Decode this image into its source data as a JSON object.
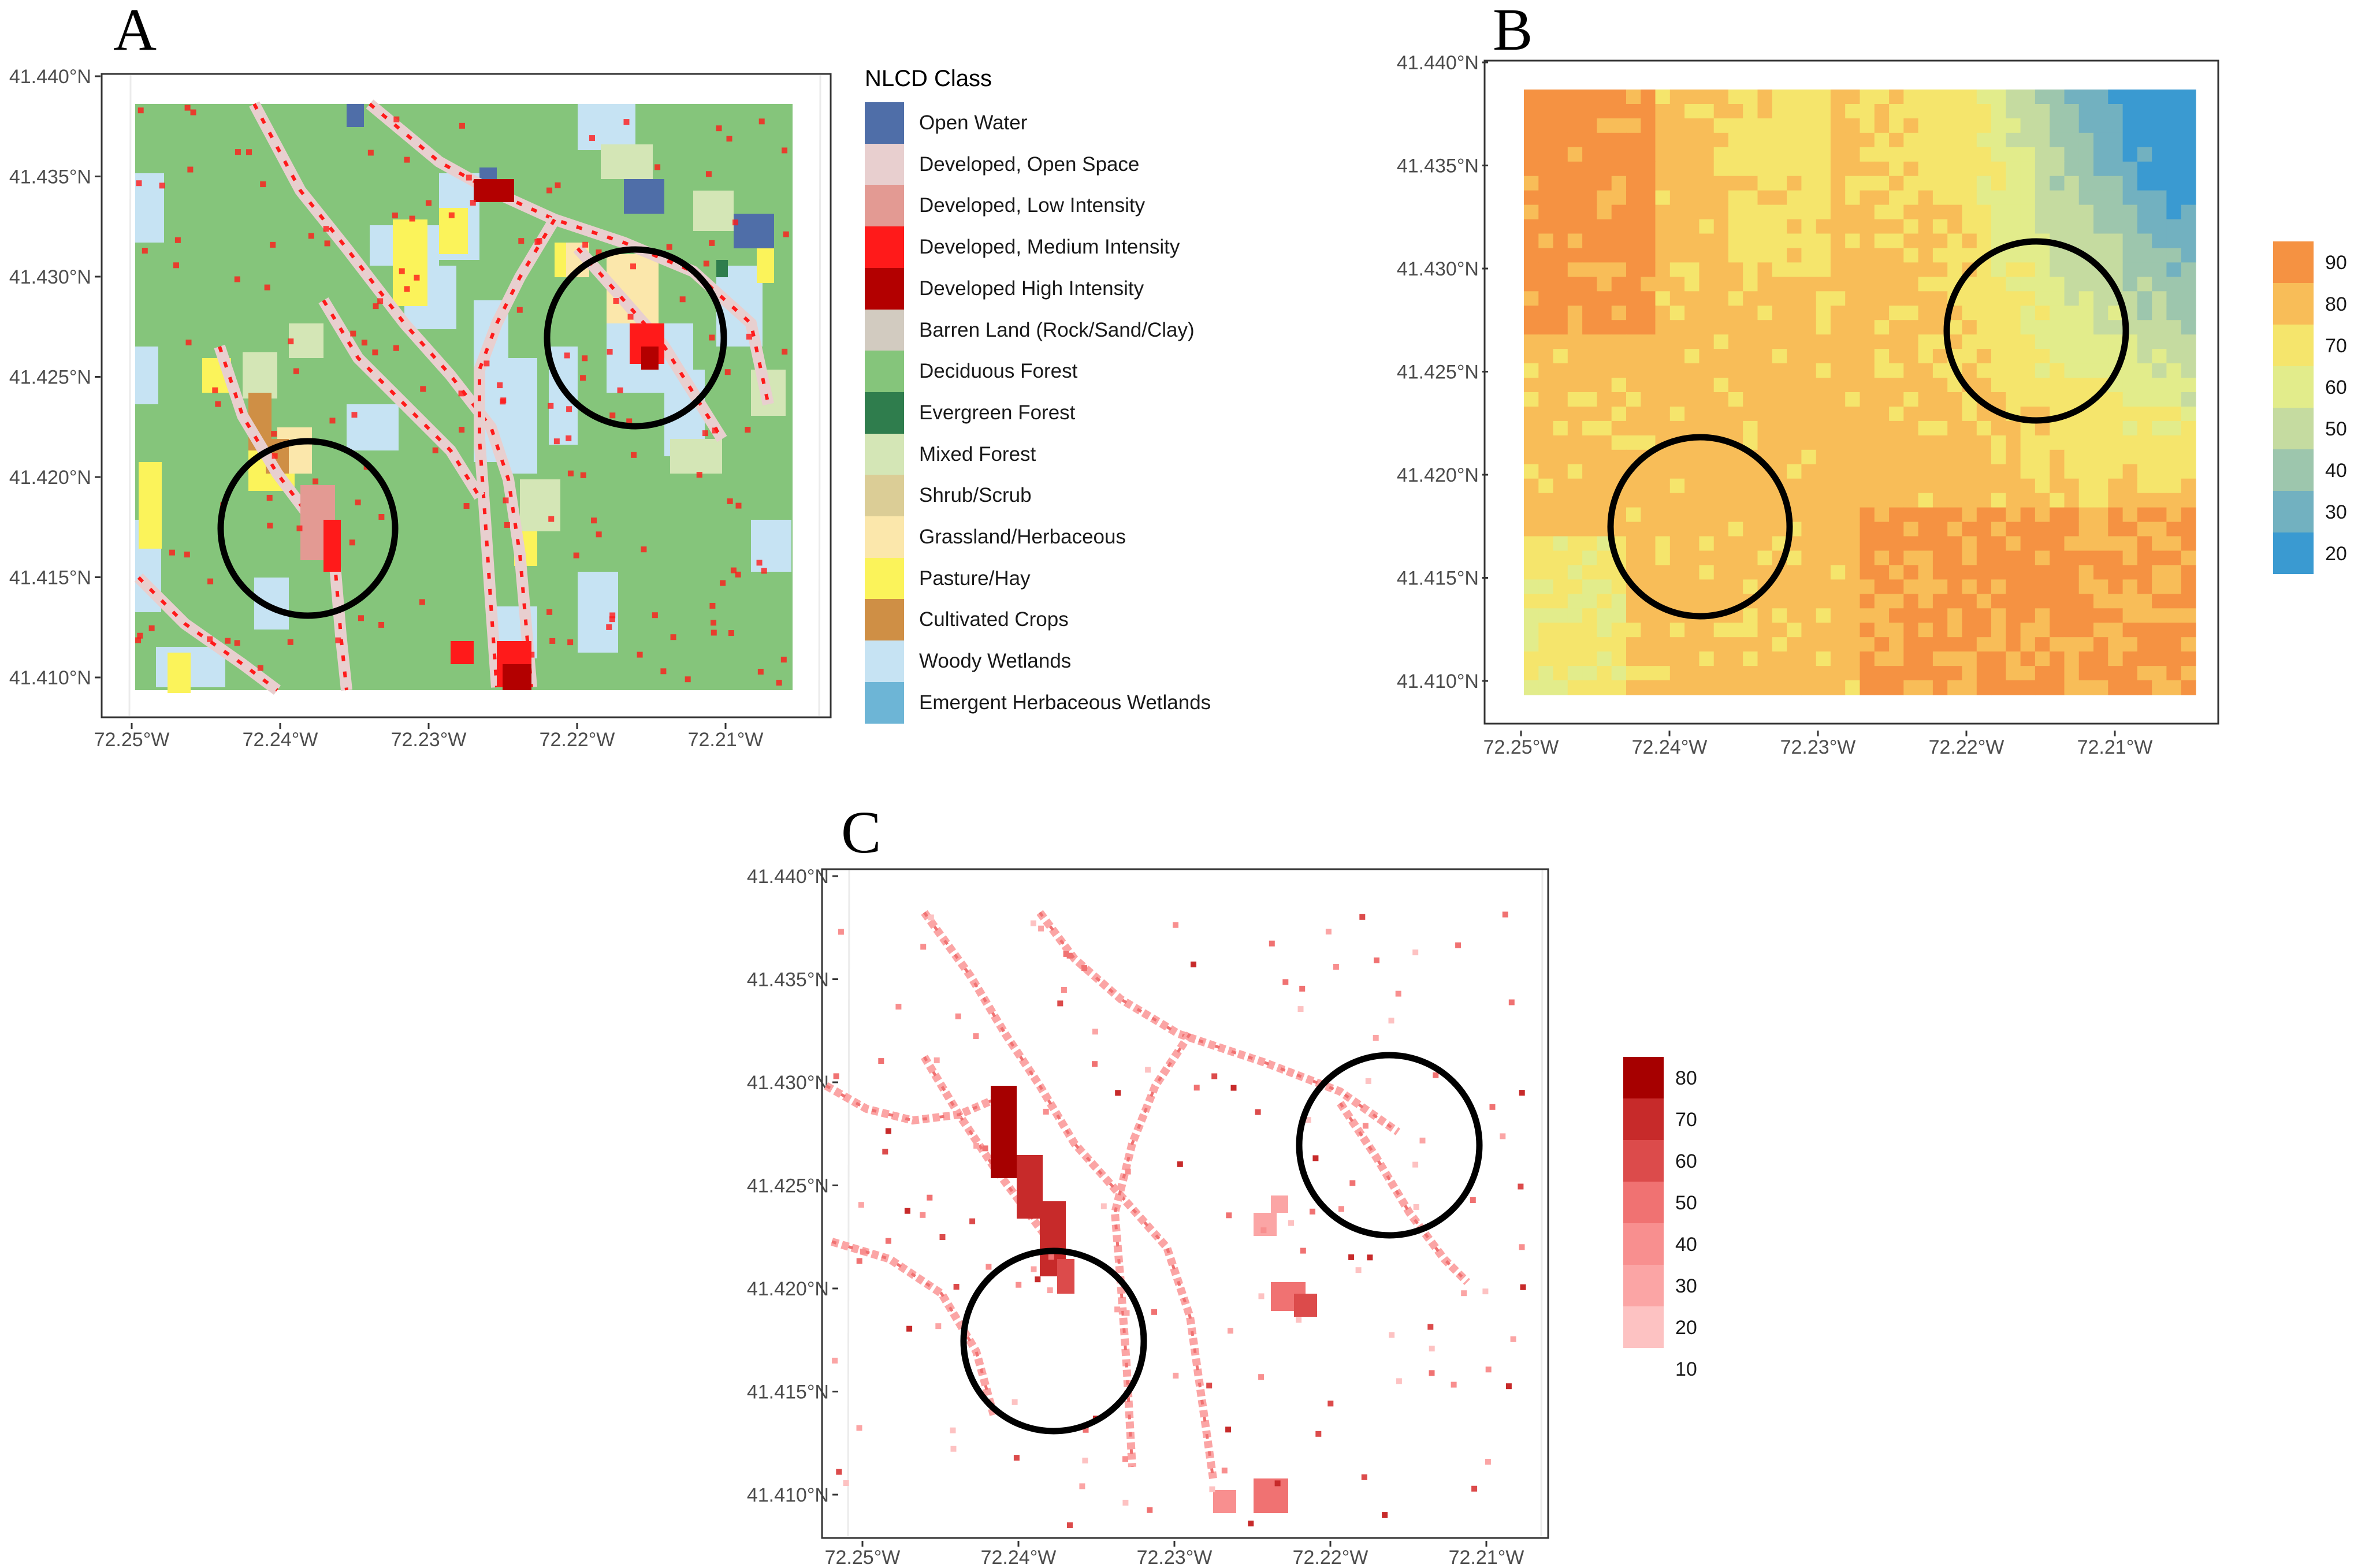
{
  "panels": {
    "a": {
      "letter": "A"
    },
    "b": {
      "letter": "B"
    },
    "c": {
      "letter": "C"
    }
  },
  "axes": {
    "y_ticks": [
      "41.440°N",
      "41.435°N",
      "41.430°N",
      "41.425°N",
      "41.420°N",
      "41.415°N",
      "41.410°N"
    ],
    "x_ticks": [
      "72.25°W",
      "72.24°W",
      "72.23°W",
      "72.22°W",
      "72.21°W"
    ]
  },
  "legend_a": {
    "title": "NLCD Class",
    "items": [
      {
        "label": "Open Water",
        "color": "#4f6ea8"
      },
      {
        "label": "Developed, Open Space",
        "color": "#e8cfcf"
      },
      {
        "label": "Developed, Low Intensity",
        "color": "#e39a93"
      },
      {
        "label": "Developed, Medium Intensity",
        "color": "#ff1a1a"
      },
      {
        "label": "Developed High Intensity",
        "color": "#b30000"
      },
      {
        "label": "Barren Land (Rock/Sand/Clay)",
        "color": "#d2cbc0"
      },
      {
        "label": "Deciduous Forest",
        "color": "#85c57b"
      },
      {
        "label": "Evergreen Forest",
        "color": "#2f7d4d"
      },
      {
        "label": "Mixed Forest",
        "color": "#d4e6b6"
      },
      {
        "label": "Shrub/Scrub",
        "color": "#dbcd96"
      },
      {
        "label": "Grassland/Herbaceous",
        "color": "#fbe7ab"
      },
      {
        "label": "Pasture/Hay",
        "color": "#fbf35a"
      },
      {
        "label": "Cultivated Crops",
        "color": "#cf8f45"
      },
      {
        "label": "Woody Wetlands",
        "color": "#c6e3f3"
      },
      {
        "label": "Emergent Herbaceous Wetlands",
        "color": "#6db5d6"
      }
    ]
  },
  "legend_b": {
    "labels": [
      "90",
      "80",
      "70",
      "60",
      "50",
      "40",
      "30",
      "20"
    ],
    "colors": [
      "#f59242",
      "#f8bd58",
      "#f5e56c",
      "#e2ec8b",
      "#c5dba0",
      "#9dc6ad",
      "#72b1c0",
      "#3a9ad1"
    ]
  },
  "legend_c": {
    "labels": [
      "80",
      "70",
      "60",
      "50",
      "40",
      "30",
      "20",
      "10"
    ],
    "colors": [
      "#a60000",
      "#c72a2a",
      "#dc4b4b",
      "#f07272",
      "#f88f8f",
      "#fba5a5",
      "#fdc2c2",
      "#ffffff"
    ]
  }
}
